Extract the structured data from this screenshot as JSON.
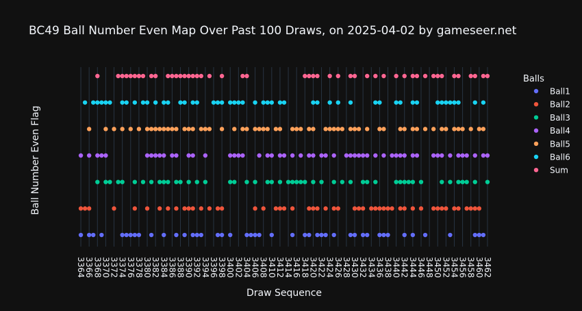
{
  "colors": {
    "background": "#111111",
    "text": "#f2f5fa",
    "grid": "#283442"
  },
  "chart_data": {
    "type": "scatter",
    "title": "BC49 Ball Number Even Map Over Past 100 Draws, on 2025-04-02 by gameseer.net",
    "xlabel": "Draw Sequence",
    "ylabel": "Ball Number Even Flag",
    "legend_title": "Balls",
    "legend_position": "right",
    "xlim": [
      3363,
      3463
    ],
    "tick_start": 3364,
    "tick_end": 3462,
    "tick_step": 2,
    "x_start": 3364,
    "x_end": 3462,
    "grid": true,
    "series": [
      {
        "name": "Ball1",
        "color": "#636efa",
        "even_draws": [
          3364,
          3366,
          3367,
          3369,
          3374,
          3375,
          3376,
          3377,
          3378,
          3381,
          3384,
          3387,
          3389,
          3391,
          3392,
          3393,
          3397,
          3398,
          3400,
          3404,
          3405,
          3406,
          3407,
          3410,
          3415,
          3418,
          3419,
          3421,
          3422,
          3423,
          3425,
          3429,
          3430,
          3432,
          3433,
          3436,
          3437,
          3438,
          3442,
          3444,
          3447,
          3453,
          3459,
          3460,
          3461,
          3463
        ]
      },
      {
        "name": "Ball2",
        "color": "#ef553b",
        "even_draws": [
          3364,
          3365,
          3366,
          3372,
          3377,
          3380,
          3383,
          3385,
          3387,
          3389,
          3390,
          3391,
          3393,
          3395,
          3397,
          3398,
          3406,
          3408,
          3411,
          3412,
          3413,
          3415,
          3419,
          3420,
          3421,
          3423,
          3425,
          3426,
          3430,
          3431,
          3432,
          3434,
          3435,
          3436,
          3437,
          3438,
          3439,
          3441,
          3442,
          3444,
          3446,
          3449,
          3450,
          3451,
          3452,
          3454,
          3455,
          3457,
          3458,
          3459,
          3460,
          3463
        ]
      },
      {
        "name": "Ball3",
        "color": "#00cc96",
        "even_draws": [
          3368,
          3370,
          3371,
          3373,
          3374,
          3377,
          3379,
          3381,
          3383,
          3384,
          3385,
          3387,
          3388,
          3390,
          3392,
          3394,
          3400,
          3401,
          3404,
          3406,
          3409,
          3410,
          3412,
          3414,
          3415,
          3416,
          3417,
          3418,
          3420,
          3422,
          3425,
          3427,
          3429,
          3432,
          3433,
          3435,
          3440,
          3441,
          3442,
          3443,
          3444,
          3446,
          3451,
          3453,
          3455,
          3456,
          3457,
          3459,
          3462,
          3463
        ]
      },
      {
        "name": "Ball4",
        "color": "#ab63fa",
        "even_draws": [
          3364,
          3366,
          3368,
          3369,
          3370,
          3380,
          3381,
          3382,
          3383,
          3384,
          3386,
          3387,
          3390,
          3391,
          3394,
          3400,
          3401,
          3402,
          3403,
          3407,
          3409,
          3410,
          3412,
          3413,
          3415,
          3417,
          3419,
          3420,
          3422,
          3423,
          3425,
          3428,
          3429,
          3430,
          3431,
          3432,
          3433,
          3435,
          3437,
          3439,
          3440,
          3441,
          3442,
          3444,
          3445,
          3449,
          3450,
          3451,
          3453,
          3455,
          3456,
          3457,
          3459,
          3461,
          3462
        ]
      },
      {
        "name": "Ball5",
        "color": "#ffa15a",
        "even_draws": [
          3366,
          3370,
          3372,
          3374,
          3376,
          3378,
          3380,
          3381,
          3382,
          3383,
          3384,
          3385,
          3386,
          3387,
          3389,
          3390,
          3391,
          3393,
          3394,
          3395,
          3398,
          3401,
          3403,
          3404,
          3406,
          3407,
          3408,
          3409,
          3411,
          3412,
          3415,
          3416,
          3417,
          3419,
          3420,
          3423,
          3424,
          3425,
          3426,
          3427,
          3429,
          3430,
          3431,
          3433,
          3436,
          3437,
          3441,
          3442,
          3444,
          3445,
          3447,
          3449,
          3451,
          3452,
          3454,
          3455,
          3456,
          3458,
          3460,
          3461,
          3463
        ]
      },
      {
        "name": "Ball6",
        "color": "#19d3f3",
        "even_draws": [
          3365,
          3367,
          3368,
          3369,
          3370,
          3371,
          3374,
          3375,
          3377,
          3379,
          3380,
          3382,
          3384,
          3385,
          3388,
          3389,
          3391,
          3392,
          3396,
          3397,
          3398,
          3400,
          3401,
          3402,
          3403,
          3406,
          3408,
          3409,
          3410,
          3412,
          3413,
          3420,
          3421,
          3424,
          3426,
          3429,
          3435,
          3436,
          3440,
          3441,
          3444,
          3445,
          3450,
          3451,
          3452,
          3453,
          3454,
          3455,
          3459,
          3461
        ]
      },
      {
        "name": "Sum",
        "color": "#ff6692",
        "even_draws": [
          3368,
          3373,
          3374,
          3375,
          3376,
          3377,
          3378,
          3379,
          3381,
          3382,
          3385,
          3386,
          3387,
          3388,
          3389,
          3390,
          3391,
          3392,
          3393,
          3395,
          3398,
          3403,
          3404,
          3418,
          3419,
          3420,
          3421,
          3424,
          3426,
          3429,
          3430,
          3433,
          3435,
          3437,
          3440,
          3442,
          3444,
          3445,
          3447,
          3449,
          3450,
          3451,
          3454,
          3455,
          3458,
          3459,
          3461,
          3462,
          3463
        ]
      }
    ]
  }
}
